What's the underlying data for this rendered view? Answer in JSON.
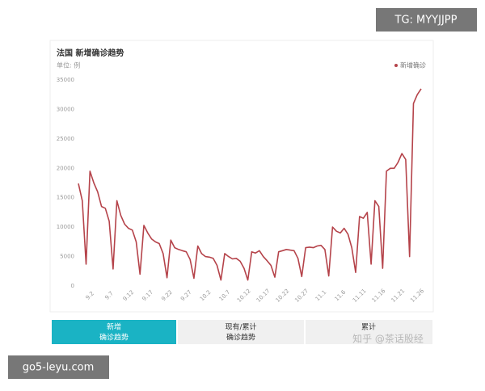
{
  "chart_data": {
    "type": "line",
    "title": "法国 新增确诊趋势",
    "subtitle": "单位: 例",
    "categories": [
      null,
      null,
      null,
      "9.2",
      null,
      null,
      null,
      null,
      "9.7",
      null,
      null,
      null,
      null,
      "9.12",
      null,
      null,
      null,
      null,
      "9.17",
      null,
      null,
      null,
      null,
      "9.22",
      null,
      null,
      null,
      null,
      "9.27",
      null,
      null,
      null,
      null,
      "10.2",
      null,
      null,
      null,
      null,
      "10.7",
      null,
      null,
      null,
      null,
      "10.12",
      null,
      null,
      null,
      null,
      "10.17",
      null,
      null,
      null,
      null,
      "10.22",
      null,
      null,
      null,
      null,
      "10.27",
      null,
      null,
      null,
      null,
      "11.1",
      null,
      null,
      null,
      null,
      "11.6",
      null,
      null,
      null,
      null,
      "11.11",
      null,
      null,
      null,
      null,
      "11.16",
      null,
      null,
      null,
      null,
      "11.21",
      null,
      null,
      null,
      null,
      "11.26",
      null
    ],
    "series": [
      {
        "name": "新增确诊",
        "color": "#b5434a",
        "values": [
          17400,
          14500,
          3700,
          19500,
          17500,
          16000,
          13500,
          13200,
          11000,
          2900,
          14500,
          12000,
          10500,
          9800,
          9500,
          7500,
          2000,
          10300,
          9000,
          8000,
          7500,
          7200,
          5500,
          1400,
          7800,
          6500,
          6200,
          6000,
          5800,
          4500,
          1300,
          6800,
          5500,
          5000,
          4900,
          4700,
          3500,
          1000,
          5500,
          5000,
          4600,
          4700,
          4200,
          3000,
          1000,
          5800,
          5600,
          6000,
          5000,
          4300,
          3500,
          1500,
          5800,
          6000,
          6200,
          6100,
          6000,
          4700,
          1600,
          6500,
          6600,
          6500,
          6800,
          6900,
          6200,
          1700,
          10000,
          9300,
          9000,
          9800,
          8800,
          6500,
          2300,
          11800,
          11500,
          12500,
          3700,
          14500,
          13500,
          3000,
          19500,
          20000,
          20000,
          21000,
          22500,
          21500,
          5000,
          31000,
          32500,
          33500
        ]
      }
    ],
    "ylim": [
      0,
      35000
    ],
    "yticks": [
      0,
      5000,
      10000,
      15000,
      20000,
      25000,
      30000,
      35000
    ],
    "grid": false,
    "legend": "top-right"
  },
  "tabs": [
    {
      "title": "新增",
      "subtitle": "确诊趋势"
    },
    {
      "title": "现有/累计",
      "subtitle": "确诊趋势"
    },
    {
      "title": "累计"
    }
  ],
  "watermarks": {
    "top": "TG: MYYJJPP",
    "center": "知乎 @茶话股经",
    "bottom": "go5-leyu.com"
  }
}
